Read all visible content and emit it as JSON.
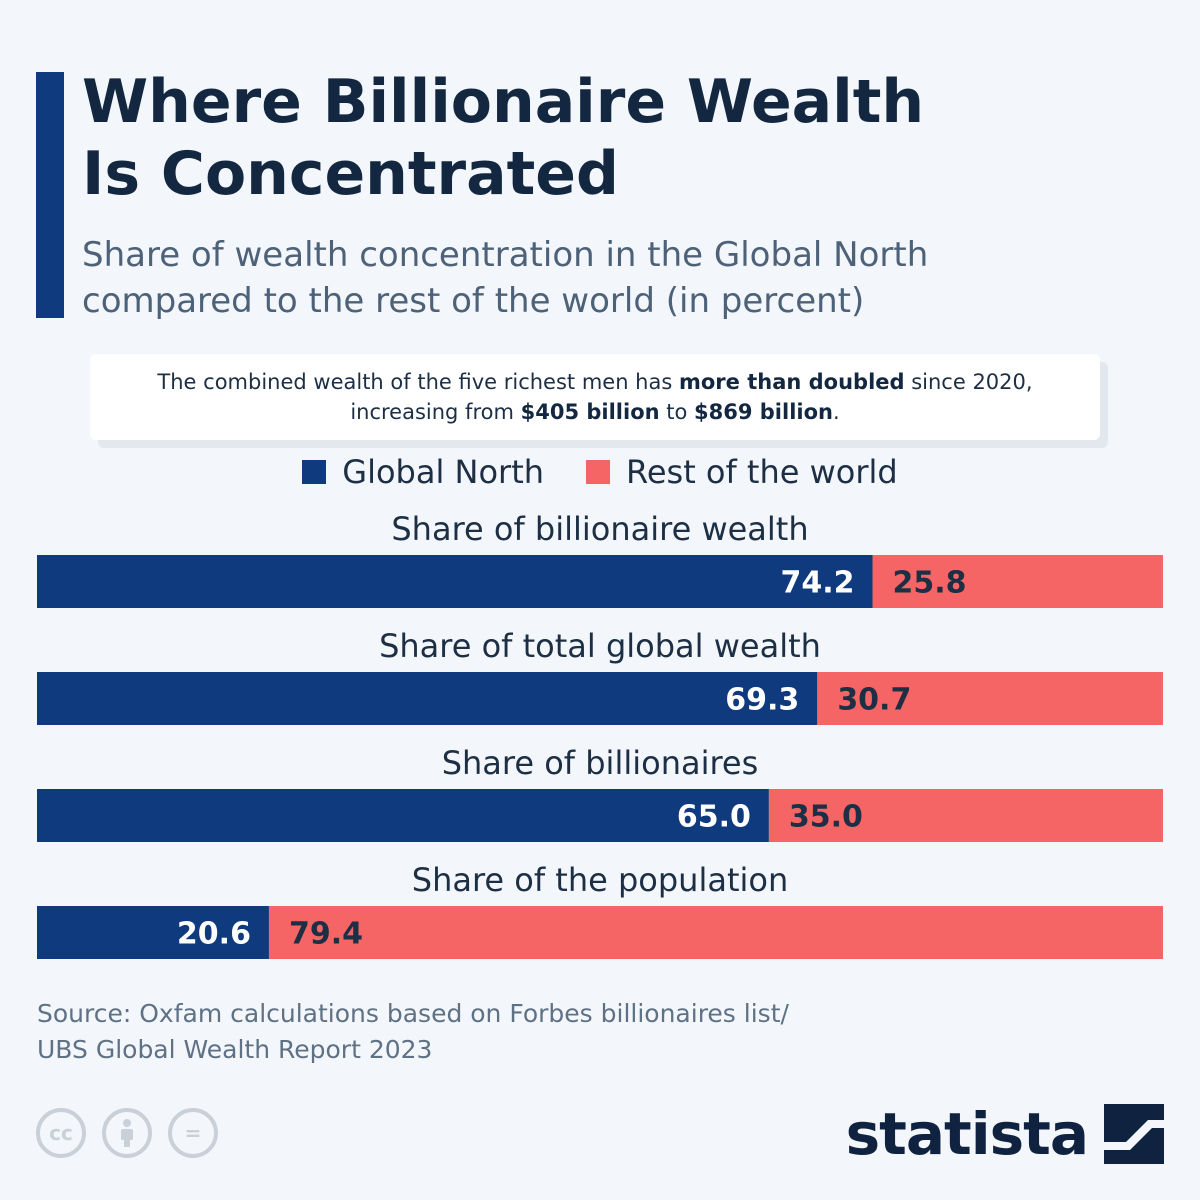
{
  "header": {
    "title_line1": "Where Billionaire Wealth",
    "title_line2": "Is Concentrated",
    "subtitle_line1": "Share of wealth concentration in the Global North",
    "subtitle_line2": "compared to the rest of the world (in percent)"
  },
  "note": {
    "part1": "The combined wealth of the five richest men has ",
    "bold1": "more than doubled",
    "part2": " since 2020,",
    "part3": "increasing from ",
    "bold2": "$405 billion",
    "part4": " to ",
    "bold3": "$869 billion",
    "part5": "."
  },
  "colors": {
    "global_north": "#0f3a7d",
    "rest_of_world": "#f56565",
    "accent": "#0f3a7d"
  },
  "chart_data": {
    "type": "bar",
    "orientation": "horizontal-stacked-100",
    "categories": [
      "Share of billionaire wealth",
      "Share of total global wealth",
      "Share of billionaires",
      "Share of the population"
    ],
    "series": [
      {
        "name": "Global North",
        "values": [
          74.2,
          69.3,
          65.0,
          20.6
        ]
      },
      {
        "name": "Rest of the world",
        "values": [
          25.8,
          30.7,
          35.0,
          79.4
        ]
      }
    ],
    "value_labels": {
      "Global North": [
        "74.2",
        "69.3",
        "65.0",
        "20.6"
      ],
      "Rest of the world": [
        "25.8",
        "30.7",
        "35.0",
        "79.4"
      ]
    },
    "xlim": [
      0,
      100
    ],
    "legend": "top-center"
  },
  "source": {
    "line1": "Source: Oxfam calculations based on Forbes billionaires list/",
    "line2": "UBS Global Wealth Report 2023"
  },
  "footer": {
    "logo_text": "statista",
    "icons": [
      "cc-icon",
      "attribution-icon",
      "no-derivatives-icon"
    ],
    "cc_text": "cc",
    "nd_text": "="
  }
}
